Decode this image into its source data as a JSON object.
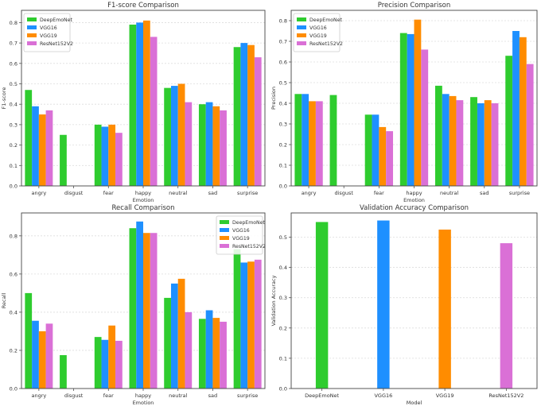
{
  "chart_data": [
    {
      "type": "bar",
      "title": "F1-score Comparison",
      "xlabel": "Emotion",
      "ylabel": "F1-score",
      "ylim": [
        0,
        0.86
      ],
      "yticks": [
        0.0,
        0.1,
        0.2,
        0.3,
        0.4,
        0.5,
        0.6,
        0.7,
        0.8
      ],
      "grid": true,
      "legend_position": "top-left",
      "categories": [
        "angry",
        "disgust",
        "fear",
        "happy",
        "neutral",
        "sad",
        "surprise"
      ],
      "series": [
        {
          "name": "DeepEmoNet",
          "color": "#2ecc2e",
          "values": [
            0.47,
            0.25,
            0.3,
            0.79,
            0.48,
            0.4,
            0.68
          ]
        },
        {
          "name": "VGG16",
          "color": "#1e90ff",
          "values": [
            0.39,
            0.0,
            0.29,
            0.8,
            0.49,
            0.41,
            0.7
          ]
        },
        {
          "name": "VGG19",
          "color": "#ff8c00",
          "values": [
            0.35,
            0.0,
            0.3,
            0.81,
            0.5,
            0.39,
            0.69
          ]
        },
        {
          "name": "ResNet152V2",
          "color": "#da70d6",
          "values": [
            0.37,
            0.0,
            0.26,
            0.73,
            0.41,
            0.37,
            0.63
          ]
        }
      ]
    },
    {
      "type": "bar",
      "title": "Precision Comparison",
      "xlabel": "Emotion",
      "ylabel": "Precision",
      "ylim": [
        0,
        0.85
      ],
      "yticks": [
        0.0,
        0.1,
        0.2,
        0.3,
        0.4,
        0.5,
        0.6,
        0.7,
        0.8
      ],
      "grid": true,
      "legend_position": "top-left",
      "categories": [
        "angry",
        "disgust",
        "fear",
        "happy",
        "neutral",
        "sad",
        "surprise"
      ],
      "series": [
        {
          "name": "DeepEmoNet",
          "color": "#2ecc2e",
          "values": [
            0.445,
            0.44,
            0.345,
            0.74,
            0.485,
            0.43,
            0.63
          ]
        },
        {
          "name": "VGG16",
          "color": "#1e90ff",
          "values": [
            0.445,
            0.0,
            0.345,
            0.735,
            0.445,
            0.4,
            0.75
          ]
        },
        {
          "name": "VGG19",
          "color": "#ff8c00",
          "values": [
            0.41,
            0.0,
            0.285,
            0.805,
            0.435,
            0.415,
            0.72
          ]
        },
        {
          "name": "ResNet152V2",
          "color": "#da70d6",
          "values": [
            0.41,
            0.0,
            0.265,
            0.66,
            0.415,
            0.4,
            0.59
          ]
        }
      ]
    },
    {
      "type": "bar",
      "title": "Recall Comparison",
      "xlabel": "Emotion",
      "ylabel": "Recall",
      "ylim": [
        0,
        0.92
      ],
      "yticks": [
        0.0,
        0.2,
        0.4,
        0.6,
        0.8
      ],
      "grid": true,
      "legend_position": "top-right",
      "categories": [
        "angry",
        "disgust",
        "fear",
        "happy",
        "neutral",
        "sad",
        "surprise"
      ],
      "series": [
        {
          "name": "DeepEmoNet",
          "color": "#2ecc2e",
          "values": [
            0.5,
            0.175,
            0.27,
            0.84,
            0.475,
            0.365,
            0.73
          ]
        },
        {
          "name": "VGG16",
          "color": "#1e90ff",
          "values": [
            0.355,
            0.0,
            0.255,
            0.875,
            0.55,
            0.41,
            0.66
          ]
        },
        {
          "name": "VGG19",
          "color": "#ff8c00",
          "values": [
            0.3,
            0.0,
            0.33,
            0.815,
            0.575,
            0.37,
            0.665
          ]
        },
        {
          "name": "ResNet152V2",
          "color": "#da70d6",
          "values": [
            0.34,
            0.0,
            0.25,
            0.815,
            0.4,
            0.35,
            0.675
          ]
        }
      ]
    },
    {
      "type": "bar",
      "title": "Validation Accuracy Comparison",
      "xlabel": "Model",
      "ylabel": "Validation Accuracy",
      "ylim": [
        0,
        0.58
      ],
      "yticks": [
        0.0,
        0.1,
        0.2,
        0.3,
        0.4,
        0.5
      ],
      "grid": true,
      "categories": [
        "DeepEmoNet",
        "VGG16",
        "VGG19",
        "ResNet152V2"
      ],
      "colors": [
        "#2ecc2e",
        "#1e90ff",
        "#ff8c00",
        "#da70d6"
      ],
      "values": [
        0.55,
        0.555,
        0.525,
        0.48
      ]
    }
  ]
}
